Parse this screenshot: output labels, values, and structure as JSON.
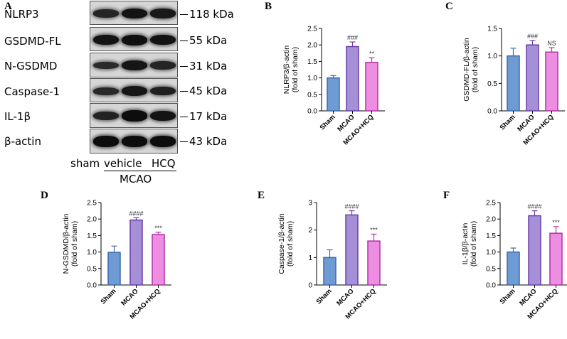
{
  "panels": {
    "A": "A",
    "B": "B",
    "C": "C",
    "D": "D",
    "E": "E",
    "F": "F"
  },
  "blot": {
    "rows": [
      {
        "label": "NLRP3",
        "kda": "118 kDa",
        "intensity": [
          0.55,
          0.85,
          0.75
        ]
      },
      {
        "label": "GSDMD-FL",
        "kda": "55 kDa",
        "intensity": [
          0.85,
          0.9,
          0.85
        ]
      },
      {
        "label": "N-GSDMD",
        "kda": "31 kDa",
        "intensity": [
          0.45,
          0.8,
          0.55
        ]
      },
      {
        "label": "Caspase-1",
        "kda": "45 kDa",
        "intensity": [
          0.5,
          0.8,
          0.65
        ]
      },
      {
        "label": "IL-1β",
        "kda": "17 kDa",
        "intensity": [
          0.6,
          0.95,
          0.85
        ]
      },
      {
        "label": "β-actin",
        "kda": "43 kDa",
        "intensity": [
          0.95,
          0.95,
          0.95
        ]
      }
    ],
    "lanes": [
      "sham",
      "vehicle",
      "HCQ"
    ],
    "group_label": "MCAO"
  },
  "chart_data": [
    {
      "panel": "B",
      "type": "bar",
      "categories": [
        "Sham",
        "MCAO",
        "MCAO+HCQ"
      ],
      "values": [
        1.0,
        1.95,
        1.47
      ],
      "errors": [
        0.07,
        0.14,
        0.14
      ],
      "significance": [
        "",
        "###",
        "**"
      ],
      "ylabel": "NLRP3/β-actin\n(fold of sham)",
      "ylim": [
        0,
        2.5
      ],
      "yticks": [
        "0.0",
        "0.5",
        "1.0",
        "1.5",
        "2.0",
        "2.5"
      ],
      "ytick_values": [
        0,
        0.5,
        1.0,
        1.5,
        2.0,
        2.5
      ]
    },
    {
      "panel": "C",
      "type": "bar",
      "categories": [
        "Sham",
        "MCAO",
        "MCAO+HCQ"
      ],
      "values": [
        1.0,
        1.2,
        1.07
      ],
      "errors": [
        0.14,
        0.08,
        0.08
      ],
      "significance": [
        "",
        "###",
        "NS"
      ],
      "ylabel": "GSDMD-FL/β-actin\n(fold of sham)",
      "ylim": [
        0,
        1.5
      ],
      "yticks": [
        "0.0",
        "0.5",
        "1.0",
        "1.5"
      ],
      "ytick_values": [
        0,
        0.5,
        1.0,
        1.5
      ]
    },
    {
      "panel": "D",
      "type": "bar",
      "categories": [
        "Sham",
        "MCAO",
        "MCAO+HCQ"
      ],
      "values": [
        0.99,
        1.97,
        1.53
      ],
      "errors": [
        0.19,
        0.07,
        0.07
      ],
      "significance": [
        "",
        "####",
        "***"
      ],
      "ylabel": "N-GSDMD/β-actin\n(fold of sham)",
      "ylim": [
        0,
        2.5
      ],
      "yticks": [
        "0.0",
        "0.5",
        "1.0",
        "1.5",
        "2.0",
        "2.5"
      ],
      "ytick_values": [
        0,
        0.5,
        1.0,
        1.5,
        2.0,
        2.5
      ]
    },
    {
      "panel": "E",
      "type": "bar",
      "categories": [
        "Sham",
        "MCAO",
        "MCAO+HCQ"
      ],
      "values": [
        1.0,
        2.55,
        1.6
      ],
      "errors": [
        0.28,
        0.15,
        0.25
      ],
      "significance": [
        "",
        "####",
        "***"
      ],
      "ylabel": "Caspase-1/β-actin\n(fold of sham)",
      "ylim": [
        0,
        3
      ],
      "yticks": [
        "0",
        "1",
        "2",
        "3"
      ],
      "ytick_values": [
        0,
        1,
        2,
        3
      ]
    },
    {
      "panel": "F",
      "type": "bar",
      "categories": [
        "Sham",
        "MCAO",
        "MCAO+HCQ"
      ],
      "values": [
        1.0,
        2.1,
        1.57
      ],
      "errors": [
        0.12,
        0.15,
        0.2
      ],
      "significance": [
        "",
        "####",
        "***"
      ],
      "ylabel": "IL-1β/β-actin\n(fold of sham)",
      "ylim": [
        0,
        2.5
      ],
      "yticks": [
        "0.0",
        "0.5",
        "1.0",
        "1.5",
        "2.0",
        "2.5"
      ],
      "ytick_values": [
        0,
        0.5,
        1.0,
        1.5,
        2.0,
        2.5
      ]
    }
  ],
  "colors": {
    "bar_fills": [
      "#6f9bd4",
      "#a58fd6",
      "#ee8ee3"
    ],
    "bar_strokes": [
      "#3e6ba8",
      "#6a3fa8",
      "#b232a6"
    ]
  }
}
